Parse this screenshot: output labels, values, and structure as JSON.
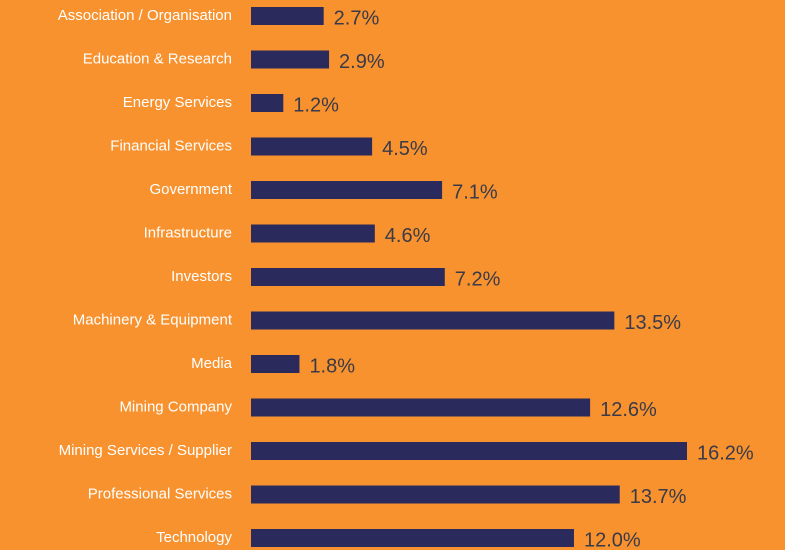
{
  "chart_data": {
    "type": "barh",
    "categories": [
      "Association / Organisation",
      "Education & Research",
      "Energy Services",
      "Financial Services",
      "Government",
      "Infrastructure",
      "Investors",
      "Machinery & Equipment",
      "Media",
      "Mining Company",
      "Mining Services / Supplier",
      "Professional Services",
      "Technology"
    ],
    "values": [
      2.7,
      2.9,
      1.2,
      4.5,
      7.1,
      4.6,
      7.2,
      13.5,
      1.8,
      12.6,
      16.2,
      13.7,
      12.0
    ],
    "value_labels": [
      "2.7%",
      "2.9%",
      "1.2%",
      "4.5%",
      "7.1%",
      "4.6%",
      "7.2%",
      "13.5%",
      "1.8%",
      "12.6%",
      "16.2%",
      "13.7%",
      "12.0%"
    ],
    "color": "#2a2a5c",
    "background": "#f7922f"
  }
}
